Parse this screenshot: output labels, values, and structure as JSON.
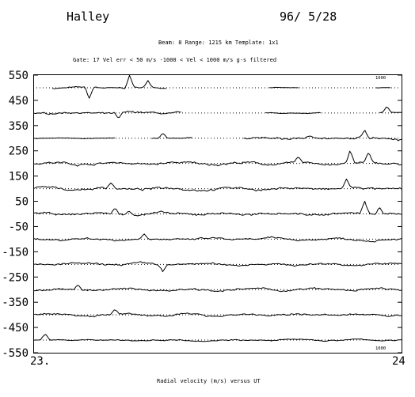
{
  "header": {
    "station": "Halley",
    "date": "96/ 5/28",
    "params_line": "Beam:  8    Range: 1215 km    Template: 1x1",
    "filter_line": "Gate: 17    Vel err < 50 m/s   -1000 < Vel < 1000 m/s    g-s filtered"
  },
  "chart_data": {
    "type": "line",
    "title": "Halley",
    "xlabel": "Radial velocity (m/s)  versus  UT",
    "ylabel": "",
    "xlim": [
      23,
      24
    ],
    "ylim": [
      -550,
      550
    ],
    "x_tick_labels": [
      "23.",
      "24"
    ],
    "y_ticks": [
      550,
      450,
      350,
      250,
      150,
      50,
      -50,
      -150,
      -250,
      -350,
      -450,
      -550
    ],
    "y_tick_labels": [
      "550",
      "450",
      "350",
      "250",
      "150",
      "50",
      "-50",
      "-150",
      "-250",
      "-350",
      "-450",
      "-550"
    ],
    "grid": "dotted reference line per stacked trace",
    "scale_labels": {
      "top": "1000",
      "bottom": "1000"
    },
    "series": [
      {
        "baseline": 500,
        "segments": [
          [
            23.05,
            23.36,
            5
          ],
          [
            23.64,
            23.72,
            2
          ],
          [
            23.93,
            23.97,
            2
          ]
        ],
        "spikes": [
          [
            23.15,
            -45
          ],
          [
            23.26,
            50
          ],
          [
            23.31,
            25
          ]
        ]
      },
      {
        "baseline": 400,
        "segments": [
          [
            23.0,
            23.4,
            7
          ],
          [
            23.63,
            23.78,
            3
          ],
          [
            23.94,
            24.0,
            3
          ]
        ],
        "spikes": [
          [
            23.23,
            -25
          ],
          [
            23.96,
            25
          ]
        ]
      },
      {
        "baseline": 300,
        "segments": [
          [
            23.0,
            23.22,
            2
          ],
          [
            23.32,
            23.43,
            4
          ],
          [
            23.57,
            24.0,
            9
          ]
        ],
        "spikes": [
          [
            23.35,
            20
          ],
          [
            23.9,
            32
          ]
        ]
      },
      {
        "baseline": 200,
        "segments": [
          [
            23.0,
            24.0,
            9
          ]
        ],
        "spikes": [
          [
            23.86,
            50
          ],
          [
            23.91,
            35
          ],
          [
            23.72,
            20
          ]
        ]
      },
      {
        "baseline": 100,
        "segments": [
          [
            23.0,
            24.0,
            9
          ]
        ],
        "spikes": [
          [
            23.21,
            25
          ],
          [
            23.85,
            35
          ]
        ]
      },
      {
        "baseline": 0,
        "segments": [
          [
            23.0,
            24.0,
            9
          ]
        ],
        "spikes": [
          [
            23.22,
            25
          ],
          [
            23.26,
            18
          ],
          [
            23.9,
            50
          ],
          [
            23.94,
            35
          ]
        ]
      },
      {
        "baseline": -100,
        "segments": [
          [
            23.0,
            24.0,
            8
          ]
        ],
        "spikes": [
          [
            23.3,
            22
          ]
        ]
      },
      {
        "baseline": -200,
        "segments": [
          [
            23.0,
            24.0,
            8
          ]
        ],
        "spikes": [
          [
            23.35,
            -25
          ]
        ]
      },
      {
        "baseline": -300,
        "segments": [
          [
            23.0,
            24.0,
            8
          ]
        ],
        "spikes": [
          [
            23.12,
            20
          ]
        ]
      },
      {
        "baseline": -400,
        "segments": [
          [
            23.0,
            24.0,
            8
          ]
        ],
        "spikes": [
          [
            23.22,
            18
          ]
        ]
      },
      {
        "baseline": -500,
        "segments": [
          [
            23.0,
            24.0,
            5
          ]
        ],
        "spikes": [
          [
            23.03,
            25
          ]
        ]
      }
    ]
  }
}
